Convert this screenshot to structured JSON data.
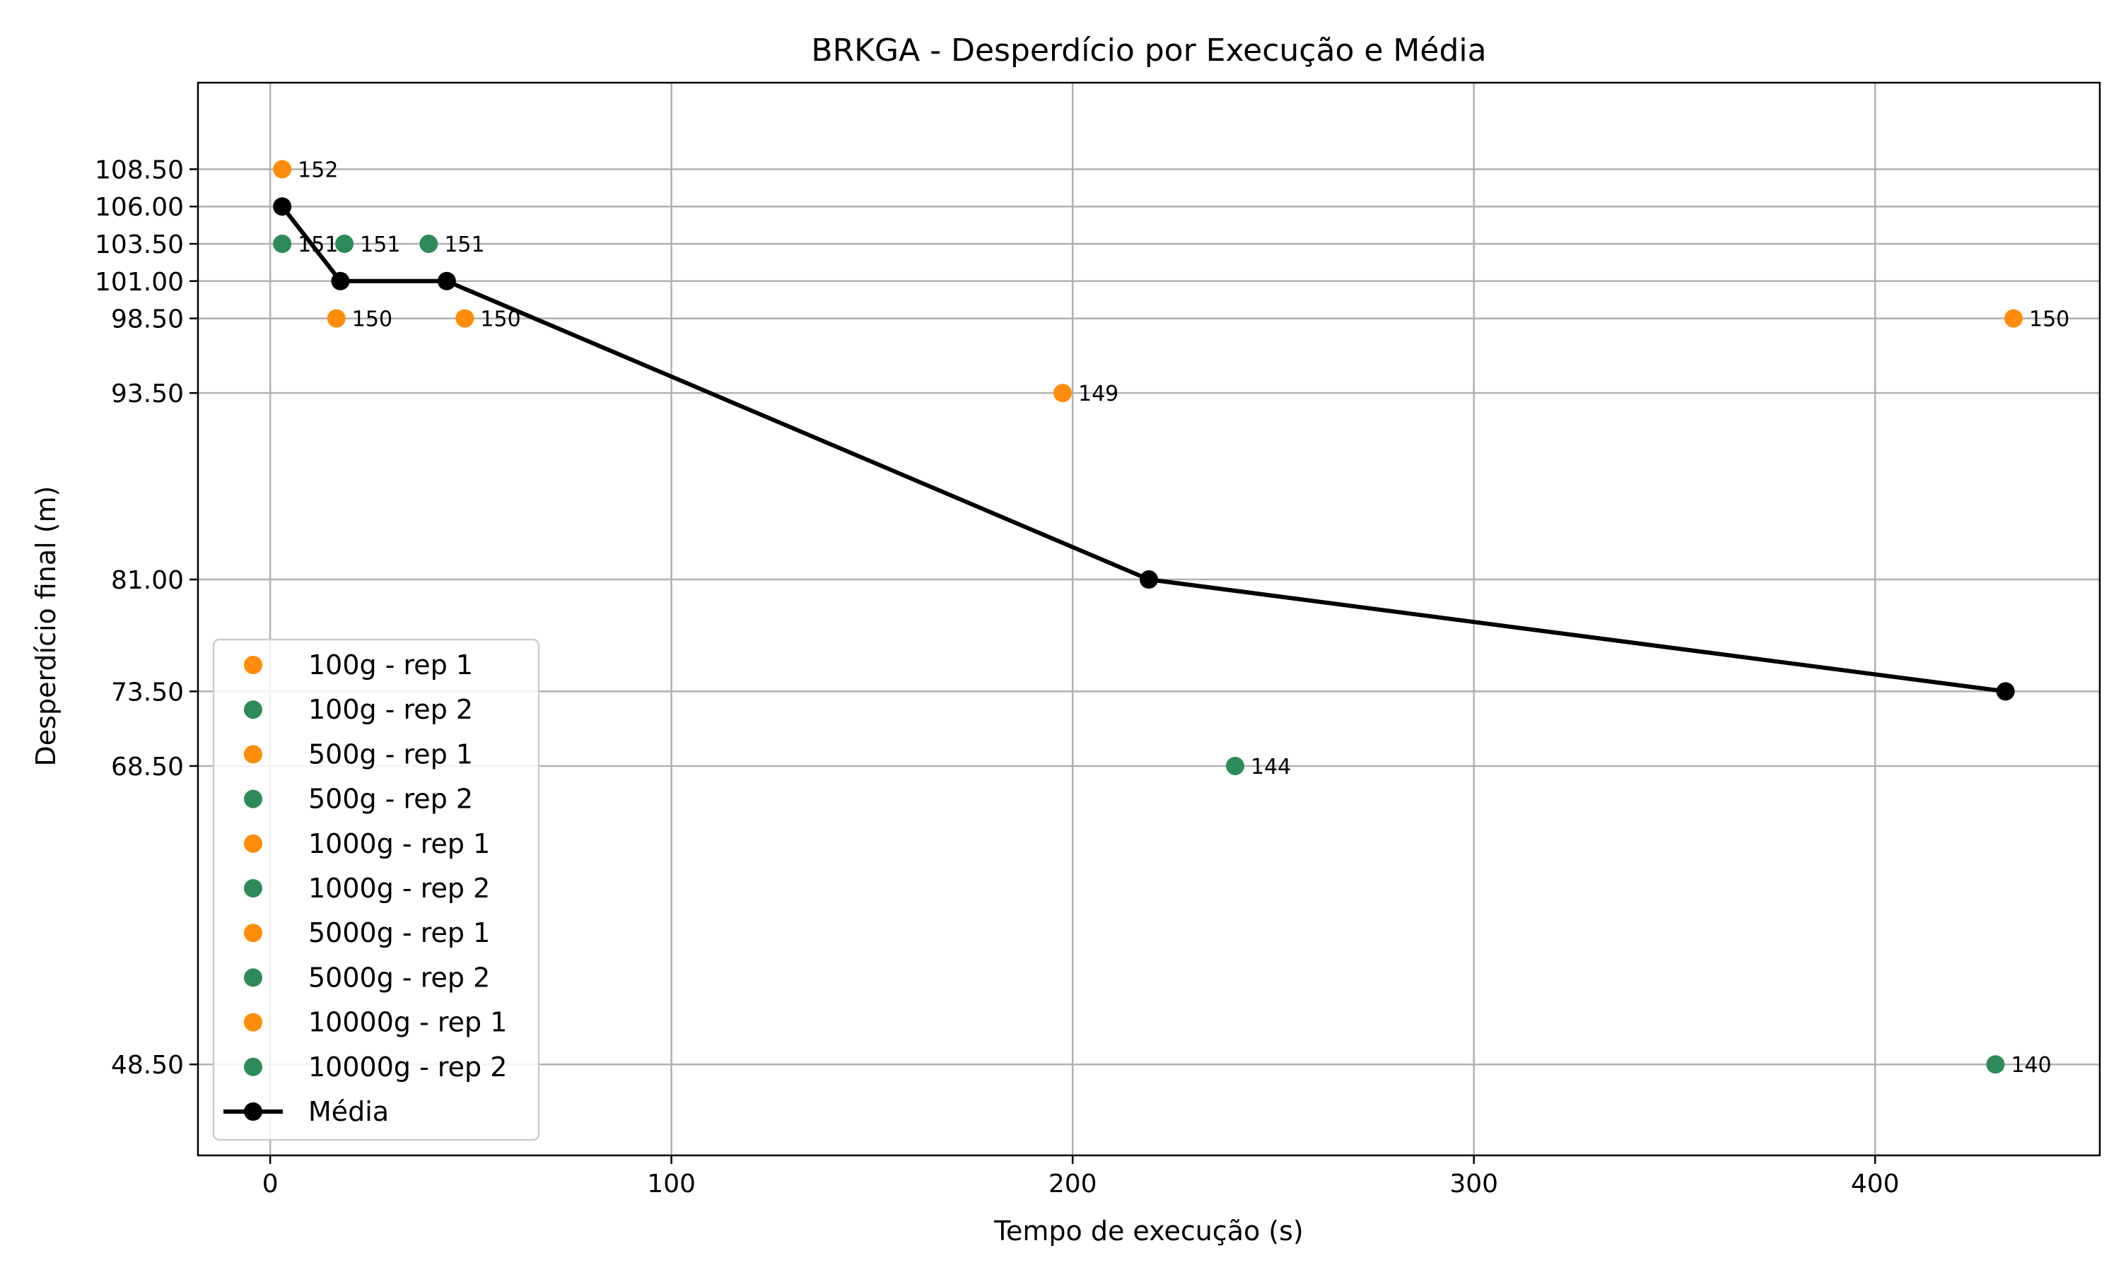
{
  "chart_data": {
    "type": "scatter",
    "title": "BRKGA - Desperdício por Execução e Média",
    "xlabel": "Tempo de execução (s)",
    "ylabel": "Desperdício final (m)",
    "xlim": [
      -18,
      456
    ],
    "ylim": [
      42.4,
      114.3
    ],
    "x_ticks": [
      0,
      100,
      200,
      300,
      400
    ],
    "y_ticks": [
      48.5,
      68.5,
      73.5,
      81.0,
      93.5,
      98.5,
      101.0,
      103.5,
      106.0,
      108.5
    ],
    "y_tick_labels": [
      "48.50",
      "68.50",
      "73.50",
      "81.00",
      "93.50",
      "98.50",
      "101.00",
      "103.50",
      "106.00",
      "108.50"
    ],
    "grid": true,
    "legend_position": "lower-left",
    "colors": {
      "rep1": "#ff8c0a",
      "rep2": "#2e8b57",
      "mean": "#000000"
    },
    "series": [
      {
        "name": "100g - rep 1",
        "color": "#ff8c0a",
        "points": [
          {
            "x": 3,
            "y": 108.5,
            "label": "152"
          }
        ]
      },
      {
        "name": "100g - rep 2",
        "color": "#2e8b57",
        "points": [
          {
            "x": 3,
            "y": 103.5,
            "label": "151"
          }
        ]
      },
      {
        "name": "500g - rep 1",
        "color": "#ff8c0a",
        "points": [
          {
            "x": 16.5,
            "y": 98.5,
            "label": "150"
          }
        ]
      },
      {
        "name": "500g - rep 2",
        "color": "#2e8b57",
        "points": [
          {
            "x": 18.5,
            "y": 103.5,
            "label": "151"
          }
        ]
      },
      {
        "name": "1000g - rep 1",
        "color": "#ff8c0a",
        "points": [
          {
            "x": 48.5,
            "y": 98.5,
            "label": "150"
          }
        ]
      },
      {
        "name": "1000g - rep 2",
        "color": "#2e8b57",
        "points": [
          {
            "x": 39.5,
            "y": 103.5,
            "label": "151"
          }
        ]
      },
      {
        "name": "5000g - rep 1",
        "color": "#ff8c0a",
        "points": [
          {
            "x": 197.5,
            "y": 93.5,
            "label": "149"
          }
        ]
      },
      {
        "name": "5000g - rep 2",
        "color": "#2e8b57",
        "points": [
          {
            "x": 240.5,
            "y": 68.5,
            "label": "144"
          }
        ]
      },
      {
        "name": "10000g - rep 1",
        "color": "#ff8c0a",
        "points": [
          {
            "x": 434.5,
            "y": 98.5,
            "label": "150"
          }
        ]
      },
      {
        "name": "10000g - rep 2",
        "color": "#2e8b57",
        "points": [
          {
            "x": 430,
            "y": 48.5,
            "label": "140"
          }
        ]
      }
    ],
    "mean": {
      "name": "Média",
      "color": "#000000",
      "points": [
        {
          "x": 3,
          "y": 106.0
        },
        {
          "x": 17.5,
          "y": 101.0
        },
        {
          "x": 44,
          "y": 101.0
        },
        {
          "x": 219,
          "y": 81.0
        },
        {
          "x": 432.5,
          "y": 73.5
        }
      ]
    }
  }
}
